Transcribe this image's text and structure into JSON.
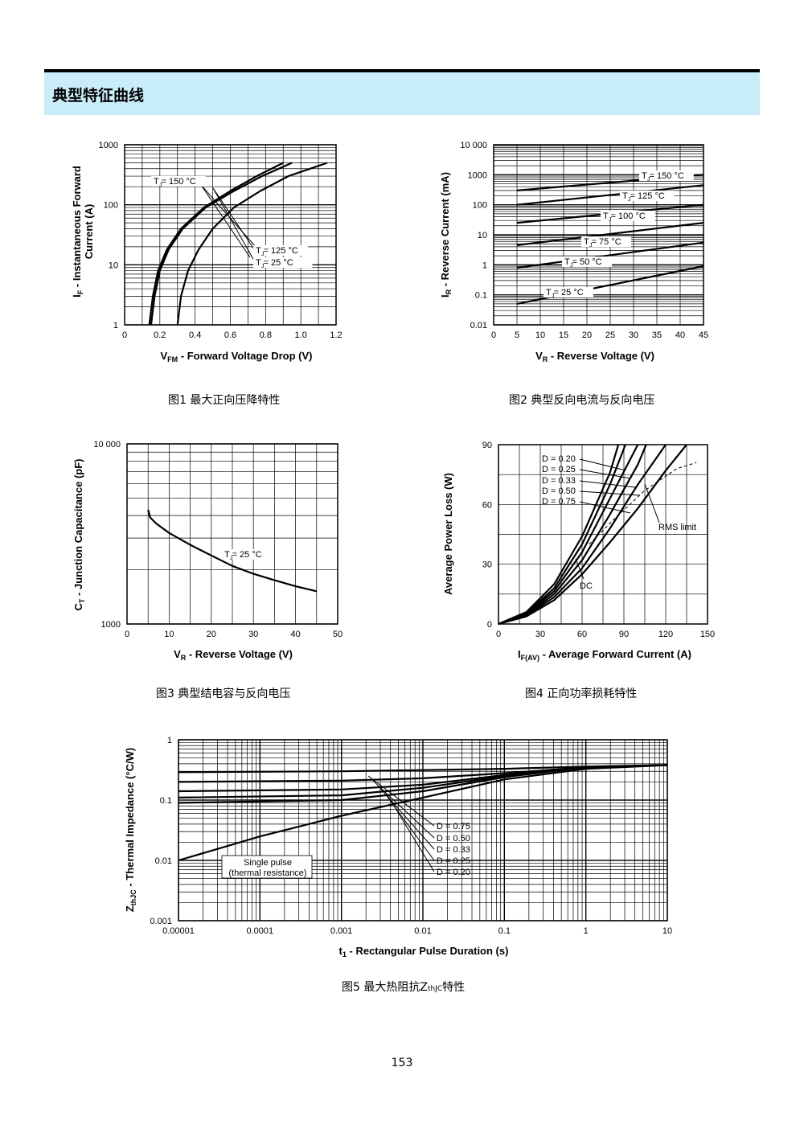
{
  "section": {
    "title": "典型特征曲线"
  },
  "page_number": "153",
  "captions": {
    "fig1": "图1  最大正向压降特性",
    "fig2": "图2  典型反向电流与反向电压",
    "fig3": "图3  典型结电容与反向电压",
    "fig4": "图4  正向功率损耗特性",
    "fig5": "图5  最大热阻抗Z"
  },
  "caption5_sub": "thJC",
  "caption5_suffix": "特性",
  "chart_data": [
    {
      "id": "fig1",
      "type": "line",
      "y_scale": "log",
      "xlim": [
        0,
        1.2
      ],
      "ylim": [
        1,
        1000
      ],
      "x_ticks": [
        "0",
        "0.2",
        "0.4",
        "0.6",
        "0.8",
        "1.0",
        "1.2"
      ],
      "y_ticks": [
        "1",
        "10",
        "100",
        "1000"
      ],
      "xlabel_main": "V",
      "xlabel_sub": "FM",
      "xlabel_rest": " - Forward Voltage Drop (V)",
      "ylabel_line1": "Instantaneous Forward",
      "ylabel_main": "I",
      "ylabel_sub": "F",
      "ylabel_rest": " - ",
      "ylabel_line2": "Current (A)",
      "annotations": [
        "T  = 150 °C",
        "T  = 125 °C",
        "T  =   25 °C"
      ],
      "series": [
        {
          "name": "T = 150 °C",
          "points": [
            [
              0.14,
              1
            ],
            [
              0.16,
              3
            ],
            [
              0.19,
              8
            ],
            [
              0.24,
              18
            ],
            [
              0.32,
              40
            ],
            [
              0.45,
              90
            ],
            [
              0.6,
              170
            ],
            [
              0.75,
              300
            ],
            [
              0.9,
              500
            ]
          ]
        },
        {
          "name": "T = 125 °C",
          "points": [
            [
              0.15,
              1
            ],
            [
              0.17,
              3
            ],
            [
              0.2,
              8
            ],
            [
              0.25,
              18
            ],
            [
              0.33,
              40
            ],
            [
              0.46,
              90
            ],
            [
              0.62,
              170
            ],
            [
              0.78,
              300
            ],
            [
              0.95,
              500
            ]
          ]
        },
        {
          "name": "T = 25 °C",
          "points": [
            [
              0.3,
              1
            ],
            [
              0.32,
              3
            ],
            [
              0.36,
              8
            ],
            [
              0.42,
              18
            ],
            [
              0.5,
              40
            ],
            [
              0.62,
              90
            ],
            [
              0.77,
              170
            ],
            [
              0.93,
              300
            ],
            [
              1.15,
              500
            ]
          ]
        }
      ]
    },
    {
      "id": "fig2",
      "type": "line",
      "y_scale": "log",
      "xlim": [
        0,
        45
      ],
      "ylim": [
        0.01,
        10000
      ],
      "x_ticks": [
        "0",
        "5",
        "10",
        "15",
        "20",
        "25",
        "30",
        "35",
        "40",
        "45"
      ],
      "y_ticks": [
        "0.01",
        "0.1",
        "1",
        "10",
        "100",
        "1000",
        "10 000"
      ],
      "xlabel_main": "V",
      "xlabel_sub": "R",
      "xlabel_rest": " - Reverse Voltage (V)",
      "ylabel_main": "I",
      "ylabel_sub": "R",
      "ylabel_rest": " - Reverse Current (mA)",
      "annotations": [
        "T  = 150 °C",
        "T  = 125 °C",
        "T  = 100 °C",
        "T  = 75 °C",
        "T  = 50 °C",
        "T  = 25 °C"
      ],
      "series": [
        {
          "name": "T = 150 °C",
          "points": [
            [
              5,
              300
            ],
            [
              45,
              1000
            ]
          ]
        },
        {
          "name": "T = 125 °C",
          "points": [
            [
              5,
              100
            ],
            [
              45,
              450
            ]
          ]
        },
        {
          "name": "T = 100 °C",
          "points": [
            [
              5,
              25
            ],
            [
              45,
              100
            ]
          ]
        },
        {
          "name": "T = 75 °C",
          "points": [
            [
              5,
              4.5
            ],
            [
              45,
              25
            ]
          ]
        },
        {
          "name": "T = 50 °C",
          "points": [
            [
              5,
              0.8
            ],
            [
              45,
              5.5
            ]
          ]
        },
        {
          "name": "T = 25 °C",
          "points": [
            [
              5,
              0.05
            ],
            [
              45,
              0.9
            ]
          ]
        }
      ]
    },
    {
      "id": "fig3",
      "type": "line",
      "y_scale": "log",
      "xlim": [
        0,
        50
      ],
      "ylim": [
        1000,
        10000
      ],
      "x_ticks": [
        "0",
        "10",
        "20",
        "30",
        "40",
        "50"
      ],
      "y_ticks": [
        "1000",
        "10 000"
      ],
      "xlabel_main": "V",
      "xlabel_sub": "R",
      "xlabel_rest": " - Reverse Voltage (V)",
      "ylabel_main": "C",
      "ylabel_sub": "T",
      "ylabel_rest": " - Junction Capacitance (pF)",
      "annotations": [
        "T  = 25 °C"
      ],
      "series": [
        {
          "name": "T = 25 °C",
          "points": [
            [
              5,
              4300
            ],
            [
              5.5,
              3900
            ],
            [
              7,
              3600
            ],
            [
              10,
              3200
            ],
            [
              15,
              2750
            ],
            [
              20,
              2400
            ],
            [
              25,
              2100
            ],
            [
              30,
              1900
            ],
            [
              35,
              1750
            ],
            [
              40,
              1620
            ],
            [
              45,
              1520
            ]
          ]
        }
      ]
    },
    {
      "id": "fig4",
      "type": "line",
      "xlim": [
        0,
        150
      ],
      "ylim": [
        0,
        90
      ],
      "x_ticks": [
        "0",
        "30",
        "60",
        "90",
        "120",
        "150"
      ],
      "y_ticks": [
        "0",
        "30",
        "60",
        "90"
      ],
      "xlabel_main": "I",
      "xlabel_sub": "F(AV)",
      "xlabel_rest": " - Average Forward Current (A)",
      "ylabel": "Average Power Loss (W)",
      "annotations": [
        "D = 0.20",
        "D = 0.25",
        "D = 0.33",
        "D = 0.50",
        "D = 0.75",
        "RMS limit",
        "DC"
      ],
      "series": [
        {
          "name": "D = 0.20",
          "points": [
            [
              0,
              0
            ],
            [
              20,
              6
            ],
            [
              40,
              20
            ],
            [
              60,
              44
            ],
            [
              80,
              76
            ],
            [
              86,
              90
            ]
          ]
        },
        {
          "name": "D = 0.25",
          "points": [
            [
              0,
              0
            ],
            [
              20,
              5.5
            ],
            [
              40,
              18
            ],
            [
              60,
              40
            ],
            [
              80,
              70
            ],
            [
              90,
              88
            ],
            [
              91,
              90
            ]
          ]
        },
        {
          "name": "D = 0.33",
          "points": [
            [
              0,
              0
            ],
            [
              20,
              5
            ],
            [
              40,
              16.5
            ],
            [
              60,
              36
            ],
            [
              80,
              63
            ],
            [
              100,
              90
            ]
          ]
        },
        {
          "name": "D = 0.50",
          "points": [
            [
              0,
              0
            ],
            [
              20,
              4.5
            ],
            [
              40,
              15
            ],
            [
              60,
              32
            ],
            [
              80,
              55
            ],
            [
              100,
              80
            ],
            [
              106,
              90
            ]
          ]
        },
        {
          "name": "D = 0.75",
          "points": [
            [
              0,
              0
            ],
            [
              20,
              4.2
            ],
            [
              40,
              13.5
            ],
            [
              60,
              28
            ],
            [
              80,
              48
            ],
            [
              100,
              70
            ],
            [
              120,
              90
            ]
          ]
        },
        {
          "name": "DC",
          "points": [
            [
              0,
              0
            ],
            [
              20,
              3.8
            ],
            [
              40,
              12
            ],
            [
              60,
              25
            ],
            [
              80,
              41
            ],
            [
              100,
              58
            ],
            [
              120,
              77
            ],
            [
              135,
              90
            ]
          ]
        },
        {
          "name": "RMS limit",
          "dashed": true,
          "points": [
            [
              65,
              40
            ],
            [
              85,
              54
            ],
            [
              105,
              67
            ],
            [
              128,
              78
            ],
            [
              142,
              81
            ]
          ]
        }
      ]
    },
    {
      "id": "fig5",
      "type": "line",
      "x_scale": "log",
      "y_scale": "log",
      "xlim": [
        1e-05,
        10
      ],
      "ylim": [
        0.001,
        1
      ],
      "x_ticks": [
        "0.00001",
        "0.0001",
        "0.001",
        "0.01",
        "0.1",
        "1",
        "10"
      ],
      "y_ticks": [
        "0.001",
        "0.01",
        "0.1",
        "1"
      ],
      "xlabel_main": "t",
      "xlabel_sub": "1",
      "xlabel_rest": " - Rectangular Pulse Duration (s)",
      "ylabel_main": "Z",
      "ylabel_sub": "thJC",
      "ylabel_rest": " - Thermal Impedance (°C/W)",
      "annotations": [
        "D = 0.75",
        "D = 0.50",
        "D = 0.33",
        "D = 0.25",
        "D = 0.20",
        "Single pulse",
        "(thermal resistance)"
      ],
      "series": [
        {
          "name": "D = 0.75",
          "points": [
            [
              1e-05,
              0.29
            ],
            [
              0.001,
              0.3
            ],
            [
              0.1,
              0.33
            ],
            [
              1,
              0.36
            ],
            [
              10,
              0.38
            ]
          ]
        },
        {
          "name": "D = 0.50",
          "points": [
            [
              1e-05,
              0.2
            ],
            [
              0.001,
              0.21
            ],
            [
              0.01,
              0.23
            ],
            [
              0.1,
              0.28
            ],
            [
              1,
              0.35
            ],
            [
              10,
              0.38
            ]
          ]
        },
        {
          "name": "D = 0.33",
          "points": [
            [
              1e-05,
              0.14
            ],
            [
              0.001,
              0.15
            ],
            [
              0.01,
              0.18
            ],
            [
              0.1,
              0.26
            ],
            [
              1,
              0.35
            ],
            [
              10,
              0.38
            ]
          ]
        },
        {
          "name": "D = 0.25",
          "points": [
            [
              1e-05,
              0.11
            ],
            [
              0.001,
              0.12
            ],
            [
              0.01,
              0.16
            ],
            [
              0.1,
              0.25
            ],
            [
              1,
              0.35
            ],
            [
              10,
              0.38
            ]
          ]
        },
        {
          "name": "D = 0.20",
          "points": [
            [
              1e-05,
              0.09
            ],
            [
              0.001,
              0.1
            ],
            [
              0.01,
              0.14
            ],
            [
              0.1,
              0.24
            ],
            [
              1,
              0.35
            ],
            [
              10,
              0.38
            ]
          ]
        },
        {
          "name": "Single pulse",
          "points": [
            [
              1e-05,
              0.01
            ],
            [
              0.0001,
              0.025
            ],
            [
              0.001,
              0.055
            ],
            [
              0.01,
              0.11
            ],
            [
              0.1,
              0.22
            ],
            [
              1,
              0.33
            ],
            [
              10,
              0.38
            ]
          ]
        }
      ]
    }
  ]
}
